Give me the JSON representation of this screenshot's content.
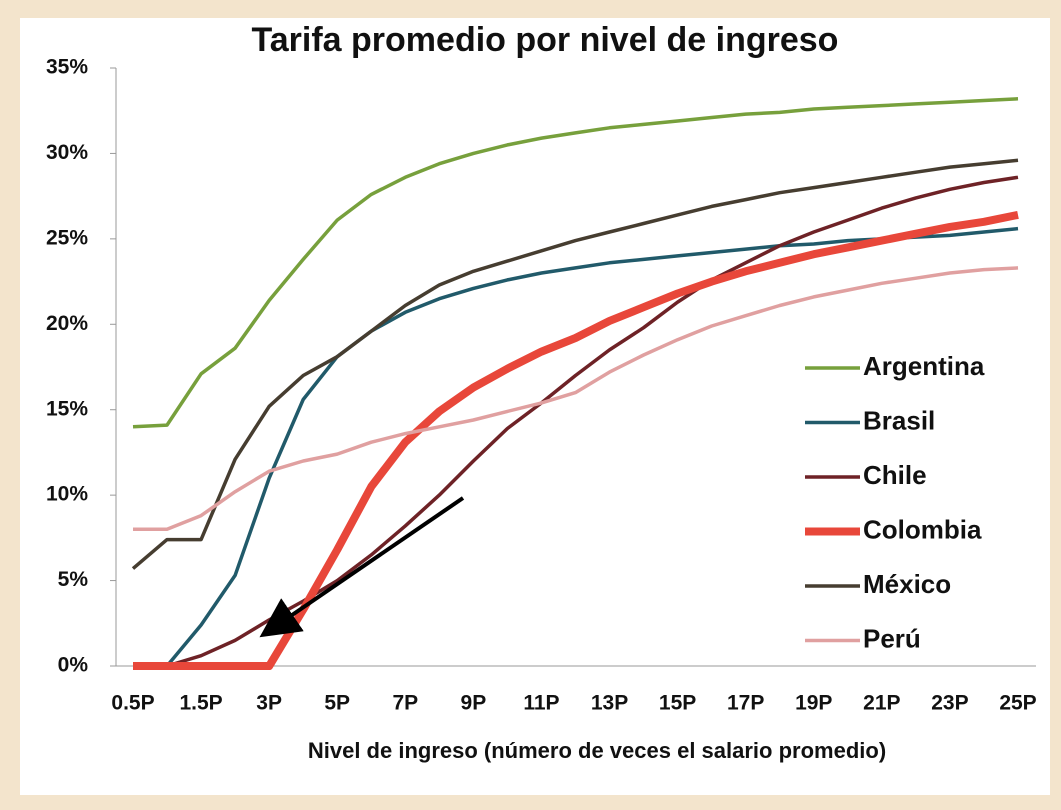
{
  "chart_data": {
    "type": "line",
    "title": "Tarifa promedio por nivel de ingreso",
    "x_label": "Nivel de ingreso (número de veces el salario promedio)",
    "categories": [
      "0.5P",
      null,
      "1.5P",
      null,
      "3P",
      null,
      "5P",
      null,
      "7P",
      null,
      "9P",
      null,
      "11P",
      null,
      "13P",
      null,
      "15P",
      null,
      "17P",
      null,
      "19P",
      null,
      "21P",
      null,
      "23P",
      null,
      "25P"
    ],
    "series": [
      {
        "name": "Argentina",
        "color": "#77a03c",
        "values": [
          14.0,
          14.1,
          17.1,
          18.6,
          21.4,
          23.8,
          26.1,
          27.6,
          28.6,
          29.4,
          30.0,
          30.5,
          30.9,
          31.2,
          31.5,
          31.7,
          31.9,
          32.1,
          32.3,
          32.4,
          32.6,
          32.7,
          32.8,
          32.9,
          33.0,
          33.1,
          33.2
        ]
      },
      {
        "name": "Brasil",
        "color": "#215a6a",
        "values": [
          0,
          0,
          2.4,
          5.3,
          11.0,
          15.6,
          18.1,
          19.6,
          20.7,
          21.5,
          22.1,
          22.6,
          23.0,
          23.3,
          23.6,
          23.8,
          24.0,
          24.2,
          24.4,
          24.6,
          24.7,
          24.9,
          25.0,
          25.1,
          25.2,
          25.4,
          25.6
        ]
      },
      {
        "name": "Chile",
        "color": "#6e2226",
        "values": [
          0,
          0,
          0.6,
          1.5,
          2.7,
          3.8,
          5.0,
          6.5,
          8.2,
          10.0,
          12.0,
          13.9,
          15.4,
          17.0,
          18.5,
          19.8,
          21.3,
          22.6,
          23.6,
          24.6,
          25.4,
          26.1,
          26.8,
          27.4,
          27.9,
          28.3,
          28.6
        ]
      },
      {
        "name": "Colombia",
        "color": "#e8473a",
        "values": [
          0,
          0,
          0,
          0,
          0,
          3.3,
          6.8,
          10.5,
          13.1,
          14.9,
          16.3,
          17.4,
          18.4,
          19.2,
          20.2,
          21.0,
          21.8,
          22.5,
          23.1,
          23.6,
          24.1,
          24.5,
          24.9,
          25.3,
          25.7,
          26.0,
          26.4
        ]
      },
      {
        "name": "México",
        "color": "#463d30",
        "values": [
          5.7,
          7.4,
          7.4,
          12.1,
          15.2,
          17.0,
          18.1,
          19.6,
          21.1,
          22.3,
          23.1,
          23.7,
          24.3,
          24.9,
          25.4,
          25.9,
          26.4,
          26.9,
          27.3,
          27.7,
          28.0,
          28.3,
          28.6,
          28.9,
          29.2,
          29.4,
          29.6
        ]
      },
      {
        "name": "Perú",
        "color": "#e0a0a0",
        "values": [
          8.0,
          8.0,
          8.8,
          10.2,
          11.4,
          12.0,
          12.4,
          13.1,
          13.6,
          14.0,
          14.4,
          14.9,
          15.4,
          16.0,
          17.2,
          18.2,
          19.1,
          19.9,
          20.5,
          21.1,
          21.6,
          22.0,
          22.4,
          22.7,
          23.0,
          23.2,
          23.3
        ]
      }
    ],
    "ylim": [
      0,
      35
    ],
    "yticks": [
      {
        "value": 0,
        "label": "0%"
      },
      {
        "value": 5,
        "label": "5%"
      },
      {
        "value": 10,
        "label": "10%"
      },
      {
        "value": 15,
        "label": "15%"
      },
      {
        "value": 20,
        "label": "20%"
      },
      {
        "value": 25,
        "label": "25%"
      },
      {
        "value": 30,
        "label": "30%"
      },
      {
        "value": 35,
        "label": "35%"
      }
    ],
    "grid": false,
    "legend": "right"
  }
}
